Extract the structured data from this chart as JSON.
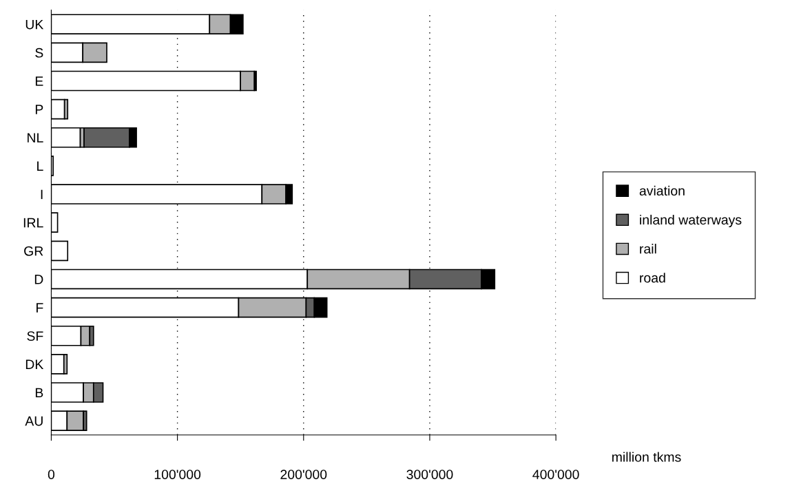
{
  "chart_data": {
    "type": "bar",
    "orientation": "horizontal",
    "stacked": true,
    "xlabel": "million tkms",
    "categories": [
      "UK",
      "S",
      "E",
      "P",
      "NL",
      "L",
      "I",
      "IRL",
      "GR",
      "D",
      "F",
      "SF",
      "DK",
      "B",
      "AU"
    ],
    "series": [
      {
        "name": "road",
        "color": "#ffffff",
        "values": [
          125500,
          25000,
          150000,
          10500,
          23000,
          1500,
          167000,
          5000,
          13000,
          203000,
          148500,
          23500,
          10000,
          25500,
          12500
        ]
      },
      {
        "name": "rail",
        "color": "#b0b0b0",
        "values": [
          16500,
          19000,
          11000,
          2500,
          3000,
          null,
          19000,
          null,
          null,
          81000,
          53500,
          7000,
          2500,
          8000,
          13000
        ]
      },
      {
        "name": "inland waterways",
        "color": "#606060",
        "values": [
          null,
          null,
          null,
          null,
          36000,
          null,
          null,
          null,
          null,
          57000,
          6500,
          3000,
          null,
          7500,
          2500
        ]
      },
      {
        "name": "aviation",
        "color": "#000000",
        "values": [
          10000,
          null,
          1500,
          null,
          5500,
          null,
          5000,
          null,
          null,
          10500,
          10000,
          null,
          null,
          null,
          null
        ]
      }
    ],
    "xlim": [
      0,
      400000
    ],
    "xticks": [
      0,
      {
        "value": 100000,
        "label": "100'000"
      },
      {
        "value": 200000,
        "label": "200'000"
      },
      {
        "value": 300000,
        "label": "300'000"
      },
      {
        "value": 400000,
        "label": "400'000"
      }
    ],
    "grid": "x",
    "legend": "right"
  }
}
